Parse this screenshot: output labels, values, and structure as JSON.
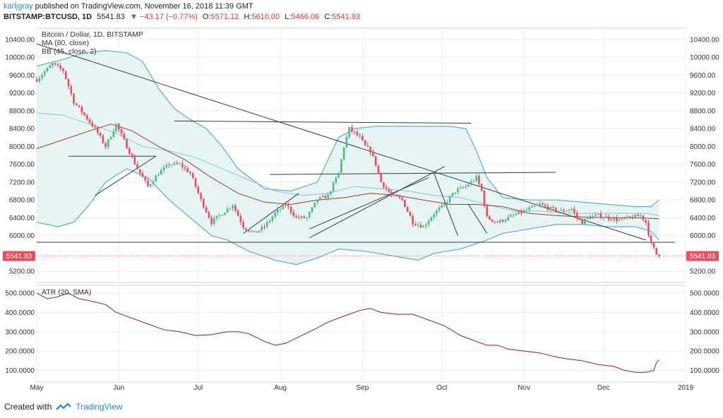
{
  "header": {
    "author": "karljgray",
    "published": "published on TradingView.com, November 16, 2018 11:39 GMT",
    "symbol": "BITSTAMP:BTCUSD, 1D",
    "last": "5541.83",
    "change": "▼ −43.17 (−0.77%)",
    "open_label": "O:",
    "open": "5571.12",
    "high_label": "H:",
    "high": "5610.00",
    "low_label": "L:",
    "low": "5466.06",
    "close_label": "C:",
    "close": "5541.83"
  },
  "footer": {
    "created_with": "Created with",
    "brand": "TradingView",
    "logo_icon": "tradingview-logo-icon"
  },
  "colors": {
    "up": "#53b987",
    "down": "#eb4d5c",
    "ma": "#9c3b3b",
    "bb": "#58b0c4",
    "bb_fill": "#e6f4f4",
    "trend": "#3a3a3a",
    "atr": "#a5322e",
    "grid": "#e9edf2",
    "price_line": "#eb4d5c"
  },
  "chart_data": [
    {
      "type": "candlestick",
      "title": "Bitcoin / Dollar, 1D, BITSTAMP",
      "indicators": [
        "MA (80, close)",
        "BB (45, close, 2)"
      ],
      "yticks": [
        10400,
        10000,
        9600,
        9200,
        8800,
        8400,
        8000,
        7600,
        7200,
        6800,
        6400,
        6000,
        5200
      ],
      "ylim": [
        4950,
        10650
      ],
      "xticks": [
        "May",
        "Jun",
        "Jul",
        "Aug",
        "Sep",
        "Oct",
        "Nov",
        "Dec",
        "2019"
      ],
      "last_price_label": "5541.83",
      "x_range_days": [
        0,
        245
      ],
      "keypoints": [
        [
          0,
          9500
        ],
        [
          6,
          9850
        ],
        [
          10,
          9700
        ],
        [
          14,
          9000
        ],
        [
          18,
          8700
        ],
        [
          22,
          8400
        ],
        [
          26,
          8000
        ],
        [
          30,
          8500
        ],
        [
          34,
          8000
        ],
        [
          38,
          7500
        ],
        [
          42,
          7100
        ],
        [
          46,
          7400
        ],
        [
          50,
          7600
        ],
        [
          54,
          7600
        ],
        [
          58,
          7400
        ],
        [
          62,
          6800
        ],
        [
          66,
          6300
        ],
        [
          70,
          6500
        ],
        [
          74,
          6700
        ],
        [
          78,
          6200
        ],
        [
          82,
          6050
        ],
        [
          86,
          6200
        ],
        [
          90,
          6500
        ],
        [
          94,
          6700
        ],
        [
          98,
          6400
        ],
        [
          102,
          6400
        ],
        [
          106,
          6800
        ],
        [
          110,
          6900
        ],
        [
          114,
          7400
        ],
        [
          116,
          8000
        ],
        [
          118,
          8400
        ],
        [
          120,
          8300
        ],
        [
          122,
          8200
        ],
        [
          124,
          8000
        ],
        [
          126,
          7900
        ],
        [
          128,
          7600
        ],
        [
          130,
          7200
        ],
        [
          134,
          6900
        ],
        [
          138,
          6800
        ],
        [
          142,
          6300
        ],
        [
          146,
          6200
        ],
        [
          150,
          6500
        ],
        [
          154,
          6700
        ],
        [
          158,
          7000
        ],
        [
          162,
          7100
        ],
        [
          166,
          7300
        ],
        [
          168,
          7000
        ],
        [
          170,
          6400
        ],
        [
          174,
          6300
        ],
        [
          178,
          6400
        ],
        [
          182,
          6500
        ],
        [
          186,
          6600
        ],
        [
          190,
          6700
        ],
        [
          194,
          6600
        ],
        [
          198,
          6550
        ],
        [
          202,
          6600
        ],
        [
          204,
          6400
        ],
        [
          206,
          6300
        ],
        [
          208,
          6400
        ],
        [
          212,
          6450
        ],
        [
          216,
          6400
        ],
        [
          220,
          6350
        ],
        [
          224,
          6400
        ],
        [
          228,
          6450
        ],
        [
          230,
          6300
        ],
        [
          232,
          5800
        ],
        [
          233,
          5700
        ],
        [
          234,
          5580
        ],
        [
          235,
          5541.83
        ]
      ],
      "ma_80": [
        [
          0,
          7950
        ],
        [
          10,
          8150
        ],
        [
          20,
          8350
        ],
        [
          28,
          8500
        ],
        [
          36,
          8350
        ],
        [
          46,
          8000
        ],
        [
          56,
          7700
        ],
        [
          66,
          7300
        ],
        [
          76,
          6950
        ],
        [
          86,
          6750
        ],
        [
          96,
          6700
        ],
        [
          106,
          6800
        ],
        [
          116,
          6850
        ],
        [
          126,
          6950
        ],
        [
          136,
          6900
        ],
        [
          146,
          6800
        ],
        [
          156,
          6700
        ],
        [
          166,
          6700
        ],
        [
          176,
          6650
        ],
        [
          186,
          6500
        ],
        [
          196,
          6450
        ],
        [
          206,
          6420
        ],
        [
          216,
          6400
        ],
        [
          226,
          6400
        ],
        [
          235,
          6380
        ]
      ],
      "bb_upper": [
        [
          0,
          9800
        ],
        [
          10,
          9950
        ],
        [
          18,
          10100
        ],
        [
          26,
          10150
        ],
        [
          34,
          10100
        ],
        [
          40,
          9900
        ],
        [
          46,
          9300
        ],
        [
          52,
          8850
        ],
        [
          58,
          8600
        ],
        [
          64,
          8400
        ],
        [
          70,
          8000
        ],
        [
          76,
          7500
        ],
        [
          86,
          7050
        ],
        [
          96,
          7000
        ],
        [
          106,
          7200
        ],
        [
          114,
          8200
        ],
        [
          120,
          8400
        ],
        [
          128,
          8450
        ],
        [
          136,
          8450
        ],
        [
          146,
          8450
        ],
        [
          156,
          8450
        ],
        [
          162,
          8400
        ],
        [
          166,
          7900
        ],
        [
          170,
          7300
        ],
        [
          176,
          6850
        ],
        [
          186,
          6800
        ],
        [
          196,
          6800
        ],
        [
          206,
          6750
        ],
        [
          216,
          6700
        ],
        [
          226,
          6650
        ],
        [
          232,
          6650
        ],
        [
          235,
          6800
        ]
      ],
      "bb_basis": [
        [
          0,
          8750
        ],
        [
          10,
          8700
        ],
        [
          20,
          8500
        ],
        [
          30,
          8300
        ],
        [
          40,
          8000
        ],
        [
          50,
          7900
        ],
        [
          60,
          7750
        ],
        [
          70,
          7500
        ],
        [
          80,
          7250
        ],
        [
          90,
          7000
        ],
        [
          100,
          6900
        ],
        [
          110,
          6950
        ],
        [
          120,
          7100
        ],
        [
          130,
          7050
        ],
        [
          140,
          7000
        ],
        [
          150,
          6900
        ],
        [
          160,
          6850
        ],
        [
          170,
          6700
        ],
        [
          180,
          6550
        ],
        [
          190,
          6550
        ],
        [
          200,
          6500
        ],
        [
          210,
          6500
        ],
        [
          220,
          6500
        ],
        [
          230,
          6500
        ],
        [
          235,
          6450
        ]
      ],
      "bb_lower": [
        [
          0,
          6300
        ],
        [
          8,
          6200
        ],
        [
          14,
          6300
        ],
        [
          20,
          6700
        ],
        [
          26,
          7200
        ],
        [
          34,
          7500
        ],
        [
          42,
          7300
        ],
        [
          50,
          6800
        ],
        [
          58,
          6400
        ],
        [
          66,
          6000
        ],
        [
          72,
          5900
        ],
        [
          80,
          5650
        ],
        [
          90,
          5450
        ],
        [
          98,
          5350
        ],
        [
          106,
          5500
        ],
        [
          114,
          5700
        ],
        [
          124,
          5650
        ],
        [
          134,
          5550
        ],
        [
          144,
          5450
        ],
        [
          150,
          5600
        ],
        [
          160,
          5700
        ],
        [
          170,
          5900
        ],
        [
          176,
          6050
        ],
        [
          186,
          6150
        ],
        [
          196,
          6250
        ],
        [
          206,
          6250
        ],
        [
          216,
          6200
        ],
        [
          226,
          6200
        ],
        [
          232,
          6100
        ],
        [
          235,
          5900
        ]
      ],
      "trendlines": [
        [
          [
            0,
            10300
          ],
          [
            230,
            5900
          ]
        ],
        [
          [
            0,
            5850
          ],
          [
            241,
            5850
          ]
        ],
        [
          [
            52,
            8570
          ],
          [
            164,
            8520
          ]
        ],
        [
          [
            12,
            7780
          ],
          [
            45,
            7780
          ]
        ],
        [
          [
            22,
            6900
          ],
          [
            45,
            7780
          ]
        ],
        [
          [
            88,
            7370
          ],
          [
            196,
            7420
          ]
        ],
        [
          [
            78,
            6050
          ],
          [
            99,
            6950
          ]
        ],
        [
          [
            103,
            6150
          ],
          [
            148,
            7300
          ]
        ],
        [
          [
            103,
            5950
          ],
          [
            154,
            7550
          ]
        ],
        [
          [
            150,
            7400
          ],
          [
            159,
            6000
          ]
        ],
        [
          [
            163,
            6700
          ],
          [
            170,
            6050
          ]
        ]
      ]
    },
    {
      "type": "line",
      "title": "ATR (20, SMA)",
      "yticks": [
        500,
        400,
        300,
        200,
        100
      ],
      "ytick_labels": [
        "500.0000",
        "400.0000",
        "300.0000",
        "200.0000",
        "100.0000"
      ],
      "ylim": [
        40,
        540
      ],
      "x_range_days": [
        0,
        245
      ],
      "values": [
        [
          0,
          500
        ],
        [
          4,
          470
        ],
        [
          8,
          480
        ],
        [
          12,
          500
        ],
        [
          16,
          470
        ],
        [
          20,
          460
        ],
        [
          26,
          440
        ],
        [
          30,
          400
        ],
        [
          36,
          370
        ],
        [
          42,
          340
        ],
        [
          48,
          310
        ],
        [
          54,
          300
        ],
        [
          60,
          280
        ],
        [
          66,
          285
        ],
        [
          72,
          300
        ],
        [
          76,
          300
        ],
        [
          80,
          290
        ],
        [
          86,
          250
        ],
        [
          90,
          230
        ],
        [
          94,
          240
        ],
        [
          100,
          280
        ],
        [
          106,
          320
        ],
        [
          110,
          350
        ],
        [
          116,
          380
        ],
        [
          122,
          410
        ],
        [
          126,
          420
        ],
        [
          130,
          400
        ],
        [
          136,
          390
        ],
        [
          142,
          390
        ],
        [
          148,
          360
        ],
        [
          154,
          330
        ],
        [
          160,
          280
        ],
        [
          166,
          250
        ],
        [
          170,
          230
        ],
        [
          174,
          230
        ],
        [
          178,
          210
        ],
        [
          184,
          200
        ],
        [
          190,
          190
        ],
        [
          196,
          170
        ],
        [
          200,
          160
        ],
        [
          206,
          150
        ],
        [
          212,
          130
        ],
        [
          218,
          120
        ],
        [
          222,
          100
        ],
        [
          226,
          90
        ],
        [
          230,
          90
        ],
        [
          233,
          100
        ],
        [
          234,
          140
        ],
        [
          235,
          155
        ]
      ]
    }
  ]
}
